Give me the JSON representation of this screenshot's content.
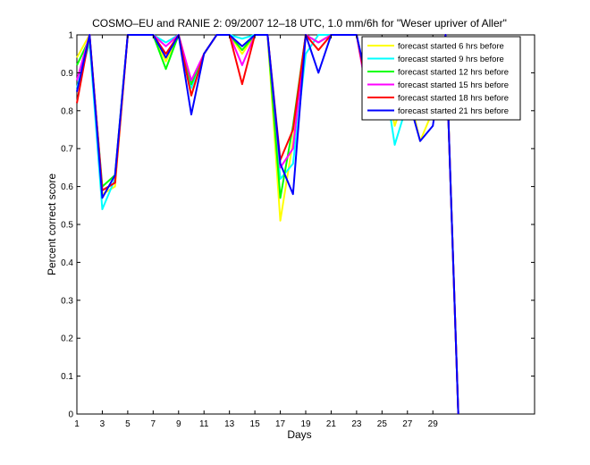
{
  "chart_data": {
    "type": "line",
    "title": "COSMO–EU and RANIE 2: 09/2007 12–18 UTC, 1.0 mm/6h for \"Weser upriver of Aller\"",
    "xlabel": "Days",
    "ylabel": "Percent correct score",
    "xlim": [
      1,
      37
    ],
    "ylim": [
      0,
      1
    ],
    "xticks": [
      1,
      3,
      5,
      7,
      9,
      11,
      13,
      15,
      17,
      19,
      21,
      23,
      25,
      27,
      29
    ],
    "yticks": [
      0,
      0.1,
      0.2,
      0.3,
      0.4,
      0.5,
      0.6,
      0.7,
      0.8,
      0.9,
      1
    ],
    "ytick_labels": [
      "0",
      "0.1",
      "0.2",
      "0.3",
      "0.4",
      "0.5",
      "0.6",
      "0.7",
      "0.8",
      "0.9",
      "1"
    ],
    "grid": false,
    "legend_position": "top-right",
    "x": [
      1,
      2,
      3,
      4,
      5,
      6,
      7,
      8,
      9,
      10,
      11,
      12,
      13,
      14,
      15,
      16,
      17,
      18,
      19,
      20,
      21,
      22,
      23,
      24,
      25,
      26,
      27,
      28,
      29,
      30,
      31
    ],
    "series": [
      {
        "name": "forecast started 6 hrs before",
        "color": "#ffff00",
        "values": [
          0.94,
          1.0,
          0.58,
          0.6,
          1.0,
          1.0,
          1.0,
          0.93,
          1.0,
          0.84,
          0.95,
          1.0,
          1.0,
          0.95,
          1.0,
          1.0,
          0.51,
          0.72,
          1.0,
          0.96,
          1.0,
          1.0,
          1.0,
          0.82,
          0.93,
          0.76,
          0.86,
          0.72,
          0.8,
          1.0,
          0.0
        ]
      },
      {
        "name": "forecast started 9 hrs before",
        "color": "#00ffff",
        "values": [
          0.86,
          0.98,
          0.54,
          0.62,
          1.0,
          1.0,
          1.0,
          0.98,
          1.0,
          0.86,
          0.95,
          1.0,
          1.0,
          0.99,
          1.0,
          1.0,
          0.62,
          0.66,
          0.95,
          1.0,
          1.0,
          1.0,
          1.0,
          0.84,
          0.93,
          0.71,
          0.82,
          0.79,
          0.81,
          1.0,
          0.0
        ]
      },
      {
        "name": "forecast started 12 hrs before",
        "color": "#00ff00",
        "values": [
          0.92,
          0.99,
          0.6,
          0.63,
          1.0,
          1.0,
          1.0,
          0.91,
          1.0,
          0.87,
          0.95,
          1.0,
          1.0,
          0.96,
          1.0,
          1.0,
          0.57,
          0.76,
          1.0,
          0.98,
          1.0,
          1.0,
          1.0,
          0.83,
          0.95,
          0.79,
          0.88,
          0.81,
          0.83,
          1.0,
          0.0
        ]
      },
      {
        "name": "forecast started 15 hrs before",
        "color": "#ff00ff",
        "values": [
          0.88,
          1.0,
          0.59,
          0.61,
          1.0,
          1.0,
          1.0,
          0.97,
          1.0,
          0.88,
          0.95,
          1.0,
          1.0,
          0.92,
          1.0,
          1.0,
          0.65,
          0.7,
          1.0,
          0.98,
          1.0,
          1.0,
          1.0,
          0.81,
          0.96,
          0.8,
          0.86,
          0.82,
          0.84,
          1.0,
          0.0
        ]
      },
      {
        "name": "forecast started 18 hrs before",
        "color": "#ff0000",
        "values": [
          0.82,
          1.0,
          0.59,
          0.61,
          1.0,
          1.0,
          1.0,
          0.95,
          1.0,
          0.84,
          0.95,
          1.0,
          1.0,
          0.87,
          1.0,
          1.0,
          0.67,
          0.75,
          1.0,
          0.96,
          1.0,
          1.0,
          1.0,
          0.83,
          0.97,
          0.82,
          0.92,
          0.81,
          0.86,
          1.0,
          0.0
        ]
      },
      {
        "name": "forecast started 21 hrs before",
        "color": "#0000ff",
        "values": [
          0.85,
          1.0,
          0.57,
          0.63,
          1.0,
          1.0,
          1.0,
          0.94,
          1.0,
          0.79,
          0.95,
          1.0,
          1.0,
          0.97,
          1.0,
          1.0,
          0.66,
          0.58,
          1.0,
          0.9,
          1.0,
          1.0,
          1.0,
          0.85,
          0.97,
          0.82,
          0.84,
          0.72,
          0.76,
          1.0,
          0.0
        ]
      }
    ]
  }
}
